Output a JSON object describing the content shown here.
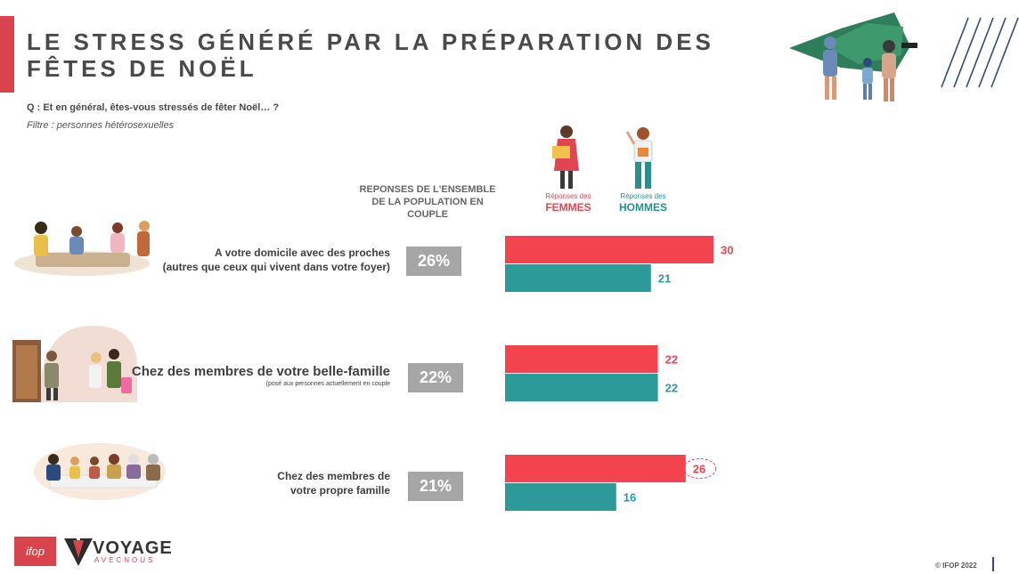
{
  "header": {
    "title": "LE STRESS GÉNÉRÉ PAR LA PRÉPARATION DES FÊTES DE NOËL",
    "question": "Q : Et en général, êtes-vous stressés de fêter Noël… ?",
    "filter": "Filtre : personnes hétérosexuelles"
  },
  "columns": {
    "overall_header": "REPONSES DE L'ENSEMBLE DE LA POPULATION EN COUPLE",
    "women_small": "Réponses des",
    "women_big": "FEMMES",
    "men_small": "Réponses des",
    "men_big": "HOMMES"
  },
  "rows": [
    {
      "label": "A votre domicile avec des proches",
      "label2": "(autres que ceux qui vivent dans votre foyer)",
      "note": "",
      "overall": "26%"
    },
    {
      "label": "Chez des membres de votre belle-famille",
      "label2": "",
      "note": "(posé aux personnes actuellement en couple",
      "overall": "22%"
    },
    {
      "label": "Chez des membres de",
      "label2": "votre propre famille",
      "note": "",
      "overall": "21%"
    }
  ],
  "chart_data": {
    "type": "bar",
    "orientation": "horizontal",
    "categories": [
      "A votre domicile avec des proches (autres que ceux qui vivent dans votre foyer)",
      "Chez des membres de votre belle-famille",
      "Chez des membres de votre propre famille"
    ],
    "series": [
      {
        "name": "FEMMES",
        "values": [
          30,
          22,
          26
        ],
        "color": "#f3434f"
      },
      {
        "name": "HOMMES",
        "values": [
          21,
          22,
          16
        ],
        "color": "#2c9a98"
      }
    ],
    "overall_values": [
      26,
      22,
      21
    ],
    "highlighted": {
      "series": "FEMMES",
      "category_index": 2
    }
  },
  "footer": {
    "ifop_logo": "ifop",
    "partner_logo": "VOYAGE",
    "partner_sub": "AVECNOUS",
    "copyright": "© IFOP 2022"
  },
  "colors": {
    "accent": "#d9434c",
    "women": "#f3434f",
    "men": "#2c9a98",
    "overall_box": "#a6a6a6"
  }
}
